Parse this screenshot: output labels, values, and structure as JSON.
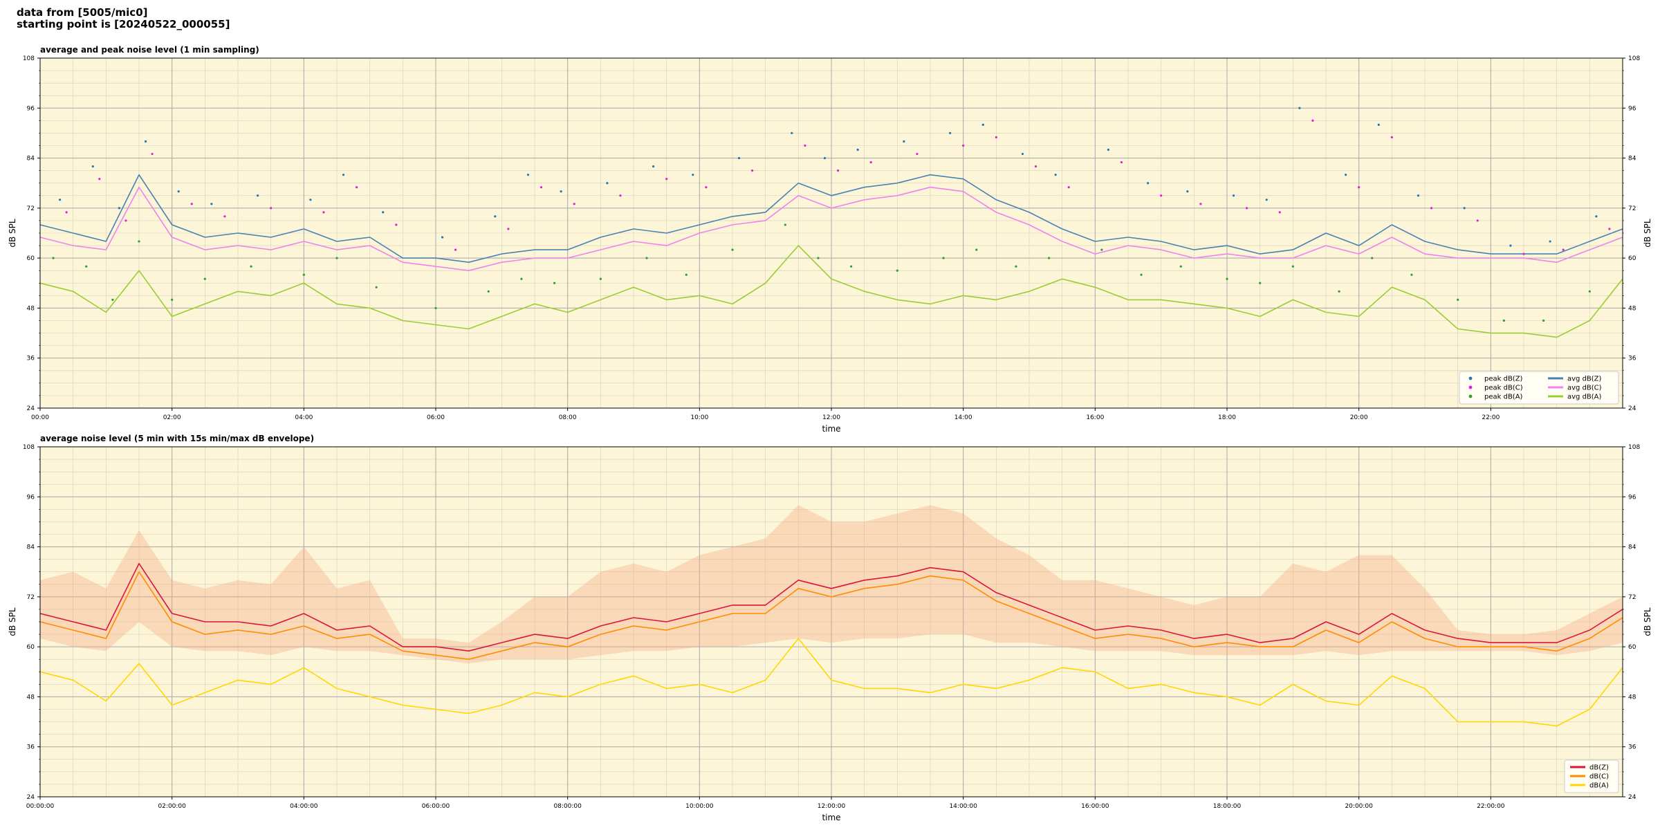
{
  "header": {
    "line1": "data from [5005/mic0]",
    "line2": "starting point is [20240522_000055]"
  },
  "chart_data": [
    {
      "type": "line",
      "title": "average and peak noise level (1 min sampling)",
      "xlabel": "time",
      "ylabel": "dB SPL",
      "xlim_hours": [
        0,
        24
      ],
      "ylim": [
        24,
        108
      ],
      "yticks": [
        24,
        36,
        48,
        60,
        72,
        84,
        96,
        108
      ],
      "xtick_labels": [
        "00:00",
        "02:00",
        "04:00",
        "06:00",
        "08:00",
        "10:00",
        "12:00",
        "14:00",
        "16:00",
        "18:00",
        "20:00",
        "22:00"
      ],
      "grid": true,
      "legend_position": "lower-right",
      "background": "#fdf5d8",
      "legend": [
        {
          "label": "peak dB(Z)",
          "kind": "dot",
          "color": "#1f77b4"
        },
        {
          "label": "peak dB(C)",
          "kind": "dot",
          "color": "#e21fd5"
        },
        {
          "label": "peak dB(A)",
          "kind": "dot",
          "color": "#2ca02c"
        },
        {
          "label": "avg dB(Z)",
          "kind": "line",
          "color": "#4682b4"
        },
        {
          "label": "avg dB(C)",
          "kind": "line",
          "color": "#ee82ee"
        },
        {
          "label": "avg dB(A)",
          "kind": "line",
          "color": "#9acd32"
        }
      ],
      "series": [
        {
          "name": "avg dB(Z)",
          "color": "#4682b4",
          "x": [
            0,
            0.5,
            1,
            1.5,
            2,
            2.5,
            3,
            3.5,
            4,
            4.5,
            5,
            5.5,
            6,
            6.5,
            7,
            7.5,
            8,
            8.5,
            9,
            9.5,
            10,
            10.5,
            11,
            11.5,
            12,
            12.5,
            13,
            13.5,
            14,
            14.5,
            15,
            15.5,
            16,
            16.5,
            17,
            17.5,
            18,
            18.5,
            19,
            19.5,
            20,
            20.5,
            21,
            21.5,
            22,
            22.5,
            23,
            23.5,
            24
          ],
          "y": [
            68,
            66,
            64,
            80,
            68,
            65,
            66,
            65,
            67,
            64,
            65,
            60,
            60,
            59,
            61,
            62,
            62,
            65,
            67,
            66,
            68,
            70,
            71,
            78,
            75,
            77,
            78,
            80,
            79,
            74,
            71,
            67,
            64,
            65,
            64,
            62,
            63,
            61,
            62,
            66,
            63,
            68,
            64,
            62,
            61,
            61,
            61,
            64,
            67
          ]
        },
        {
          "name": "avg dB(C)",
          "color": "#ee82ee",
          "x": [
            0,
            0.5,
            1,
            1.5,
            2,
            2.5,
            3,
            3.5,
            4,
            4.5,
            5,
            5.5,
            6,
            6.5,
            7,
            7.5,
            8,
            8.5,
            9,
            9.5,
            10,
            10.5,
            11,
            11.5,
            12,
            12.5,
            13,
            13.5,
            14,
            14.5,
            15,
            15.5,
            16,
            16.5,
            17,
            17.5,
            18,
            18.5,
            19,
            19.5,
            20,
            20.5,
            21,
            21.5,
            22,
            22.5,
            23,
            23.5,
            24
          ],
          "y": [
            65,
            63,
            62,
            77,
            65,
            62,
            63,
            62,
            64,
            62,
            63,
            59,
            58,
            57,
            59,
            60,
            60,
            62,
            64,
            63,
            66,
            68,
            69,
            75,
            72,
            74,
            75,
            77,
            76,
            71,
            68,
            64,
            61,
            63,
            62,
            60,
            61,
            60,
            60,
            63,
            61,
            65,
            61,
            60,
            60,
            60,
            59,
            62,
            65
          ]
        },
        {
          "name": "avg dB(A)",
          "color": "#9acd32",
          "x": [
            0,
            0.5,
            1,
            1.5,
            2,
            2.5,
            3,
            3.5,
            4,
            4.5,
            5,
            5.5,
            6,
            6.5,
            7,
            7.5,
            8,
            8.5,
            9,
            9.5,
            10,
            10.5,
            11,
            11.5,
            12,
            12.5,
            13,
            13.5,
            14,
            14.5,
            15,
            15.5,
            16,
            16.5,
            17,
            17.5,
            18,
            18.5,
            19,
            19.5,
            20,
            20.5,
            21,
            21.5,
            22,
            22.5,
            23,
            23.5,
            24
          ],
          "y": [
            54,
            52,
            47,
            57,
            46,
            49,
            52,
            51,
            54,
            49,
            48,
            45,
            44,
            43,
            46,
            49,
            47,
            50,
            53,
            50,
            51,
            49,
            54,
            63,
            55,
            52,
            50,
            49,
            51,
            50,
            52,
            55,
            53,
            50,
            50,
            49,
            48,
            46,
            50,
            47,
            46,
            53,
            50,
            43,
            42,
            42,
            41,
            45,
            55
          ]
        },
        {
          "name": "peak dB(Z)",
          "type": "scatter",
          "color": "#1f77b4",
          "x": [
            0.3,
            0.8,
            1.2,
            1.6,
            2.1,
            2.6,
            3.3,
            4.1,
            4.6,
            5.2,
            6.1,
            6.9,
            7.4,
            7.9,
            8.6,
            9.3,
            9.9,
            10.6,
            11.4,
            11.9,
            12.4,
            13.1,
            13.8,
            14.3,
            14.9,
            15.4,
            16.2,
            16.8,
            17.4,
            18.1,
            18.6,
            19.1,
            19.8,
            20.3,
            20.9,
            21.6,
            22.3,
            22.9,
            23.6
          ],
          "y": [
            74,
            82,
            72,
            88,
            76,
            73,
            75,
            74,
            80,
            71,
            65,
            70,
            80,
            76,
            78,
            82,
            80,
            84,
            90,
            84,
            86,
            88,
            90,
            92,
            85,
            80,
            86,
            78,
            76,
            75,
            74,
            96,
            80,
            92,
            75,
            72,
            63,
            64,
            70
          ]
        },
        {
          "name": "peak dB(C)",
          "type": "scatter",
          "color": "#e21fd5",
          "x": [
            0.4,
            0.9,
            1.3,
            1.7,
            2.3,
            2.8,
            3.5,
            4.3,
            4.8,
            5.4,
            6.3,
            7.1,
            7.6,
            8.1,
            8.8,
            9.5,
            10.1,
            10.8,
            11.6,
            12.1,
            12.6,
            13.3,
            14.0,
            14.5,
            15.1,
            15.6,
            16.4,
            17.0,
            17.6,
            18.3,
            18.8,
            19.3,
            20.0,
            20.5,
            21.1,
            21.8,
            22.5,
            23.1,
            23.8
          ],
          "y": [
            71,
            79,
            69,
            85,
            73,
            70,
            72,
            71,
            77,
            68,
            62,
            67,
            77,
            73,
            75,
            79,
            77,
            81,
            87,
            81,
            83,
            85,
            87,
            89,
            82,
            77,
            83,
            75,
            73,
            72,
            71,
            93,
            77,
            89,
            72,
            69,
            61,
            62,
            67
          ]
        },
        {
          "name": "peak dB(A)",
          "type": "scatter",
          "color": "#2ca02c",
          "x": [
            0.2,
            0.7,
            1.1,
            1.5,
            2.0,
            2.5,
            3.2,
            4.0,
            4.5,
            5.1,
            6.0,
            6.8,
            7.3,
            7.8,
            8.5,
            9.2,
            9.8,
            10.5,
            11.3,
            11.8,
            12.3,
            13.0,
            13.7,
            14.2,
            14.8,
            15.3,
            16.1,
            16.7,
            17.3,
            18.0,
            18.5,
            19.0,
            19.7,
            20.2,
            20.8,
            21.5,
            22.2,
            22.8,
            23.5
          ],
          "y": [
            60,
            58,
            50,
            64,
            50,
            55,
            58,
            56,
            60,
            53,
            48,
            52,
            55,
            54,
            55,
            60,
            56,
            62,
            68,
            60,
            58,
            57,
            60,
            62,
            58,
            60,
            62,
            56,
            58,
            55,
            54,
            58,
            52,
            60,
            56,
            50,
            45,
            45,
            52
          ]
        }
      ]
    },
    {
      "type": "line",
      "title": "average noise level (5 min with 15s min/max dB envelope)",
      "xlabel": "time",
      "ylabel": "dB SPL",
      "xlim_hours": [
        0,
        24
      ],
      "ylim": [
        24,
        108
      ],
      "yticks": [
        24,
        36,
        48,
        60,
        72,
        84,
        96,
        108
      ],
      "xtick_labels": [
        "00:00:00",
        "02:00:00",
        "04:00:00",
        "06:00:00",
        "08:00:00",
        "10:00:00",
        "12:00:00",
        "14:00:00",
        "16:00:00",
        "18:00:00",
        "20:00:00",
        "22:00:00"
      ],
      "grid": true,
      "legend_position": "lower-right",
      "background": "#fdf5d8",
      "envelope_color": "#f4a582",
      "legend": [
        {
          "label": "dB(Z)",
          "kind": "line",
          "color": "#dc143c"
        },
        {
          "label": "dB(C)",
          "kind": "line",
          "color": "#ff8c00"
        },
        {
          "label": "dB(A)",
          "kind": "line",
          "color": "#ffd700"
        }
      ],
      "envelope": {
        "x": [
          0,
          0.5,
          1,
          1.5,
          2,
          2.5,
          3,
          3.5,
          4,
          4.5,
          5,
          5.5,
          6,
          6.5,
          7,
          7.5,
          8,
          8.5,
          9,
          9.5,
          10,
          10.5,
          11,
          11.5,
          12,
          12.5,
          13,
          13.5,
          14,
          14.5,
          15,
          15.5,
          16,
          16.5,
          17,
          17.5,
          18,
          18.5,
          19,
          19.5,
          20,
          20.5,
          21,
          21.5,
          22,
          22.5,
          23,
          23.5,
          24
        ],
        "max": [
          76,
          78,
          74,
          88,
          76,
          74,
          76,
          75,
          84,
          74,
          76,
          62,
          62,
          61,
          66,
          72,
          72,
          78,
          80,
          78,
          82,
          84,
          86,
          94,
          90,
          90,
          92,
          94,
          92,
          86,
          82,
          76,
          76,
          74,
          72,
          70,
          72,
          72,
          80,
          78,
          82,
          82,
          74,
          64,
          63,
          63,
          64,
          68,
          72
        ],
        "min": [
          62,
          60,
          59,
          66,
          60,
          59,
          59,
          58,
          60,
          59,
          59,
          58,
          57,
          56,
          57,
          57,
          57,
          58,
          59,
          59,
          60,
          60,
          61,
          62,
          61,
          62,
          62,
          63,
          63,
          61,
          61,
          60,
          59,
          59,
          59,
          58,
          58,
          58,
          58,
          59,
          58,
          59,
          59,
          59,
          59,
          59,
          58,
          59,
          61
        ]
      },
      "series": [
        {
          "name": "dB(Z)",
          "color": "#dc143c",
          "x": [
            0,
            0.5,
            1,
            1.5,
            2,
            2.5,
            3,
            3.5,
            4,
            4.5,
            5,
            5.5,
            6,
            6.5,
            7,
            7.5,
            8,
            8.5,
            9,
            9.5,
            10,
            10.5,
            11,
            11.5,
            12,
            12.5,
            13,
            13.5,
            14,
            14.5,
            15,
            15.5,
            16,
            16.5,
            17,
            17.5,
            18,
            18.5,
            19,
            19.5,
            20,
            20.5,
            21,
            21.5,
            22,
            22.5,
            23,
            23.5,
            24
          ],
          "y": [
            68,
            66,
            64,
            80,
            68,
            66,
            66,
            65,
            68,
            64,
            65,
            60,
            60,
            59,
            61,
            63,
            62,
            65,
            67,
            66,
            68,
            70,
            70,
            76,
            74,
            76,
            77,
            79,
            78,
            73,
            70,
            67,
            64,
            65,
            64,
            62,
            63,
            61,
            62,
            66,
            63,
            68,
            64,
            62,
            61,
            61,
            61,
            64,
            69
          ]
        },
        {
          "name": "dB(C)",
          "color": "#ff8c00",
          "x": [
            0,
            0.5,
            1,
            1.5,
            2,
            2.5,
            3,
            3.5,
            4,
            4.5,
            5,
            5.5,
            6,
            6.5,
            7,
            7.5,
            8,
            8.5,
            9,
            9.5,
            10,
            10.5,
            11,
            11.5,
            12,
            12.5,
            13,
            13.5,
            14,
            14.5,
            15,
            15.5,
            16,
            16.5,
            17,
            17.5,
            18,
            18.5,
            19,
            19.5,
            20,
            20.5,
            21,
            21.5,
            22,
            22.5,
            23,
            23.5,
            24
          ],
          "y": [
            66,
            64,
            62,
            78,
            66,
            63,
            64,
            63,
            65,
            62,
            63,
            59,
            58,
            57,
            59,
            61,
            60,
            63,
            65,
            64,
            66,
            68,
            68,
            74,
            72,
            74,
            75,
            77,
            76,
            71,
            68,
            65,
            62,
            63,
            62,
            60,
            61,
            60,
            60,
            64,
            61,
            66,
            62,
            60,
            60,
            60,
            59,
            62,
            67
          ]
        },
        {
          "name": "dB(A)",
          "color": "#ffd700",
          "x": [
            0,
            0.5,
            1,
            1.5,
            2,
            2.5,
            3,
            3.5,
            4,
            4.5,
            5,
            5.5,
            6,
            6.5,
            7,
            7.5,
            8,
            8.5,
            9,
            9.5,
            10,
            10.5,
            11,
            11.5,
            12,
            12.5,
            13,
            13.5,
            14,
            14.5,
            15,
            15.5,
            16,
            16.5,
            17,
            17.5,
            18,
            18.5,
            19,
            19.5,
            20,
            20.5,
            21,
            21.5,
            22,
            22.5,
            23,
            23.5,
            24
          ],
          "y": [
            54,
            52,
            47,
            56,
            46,
            49,
            52,
            51,
            55,
            50,
            48,
            46,
            45,
            44,
            46,
            49,
            48,
            51,
            53,
            50,
            51,
            49,
            52,
            62,
            52,
            50,
            50,
            49,
            51,
            50,
            52,
            55,
            54,
            50,
            51,
            49,
            48,
            46,
            51,
            47,
            46,
            53,
            50,
            42,
            42,
            42,
            41,
            45,
            55
          ]
        }
      ]
    }
  ]
}
